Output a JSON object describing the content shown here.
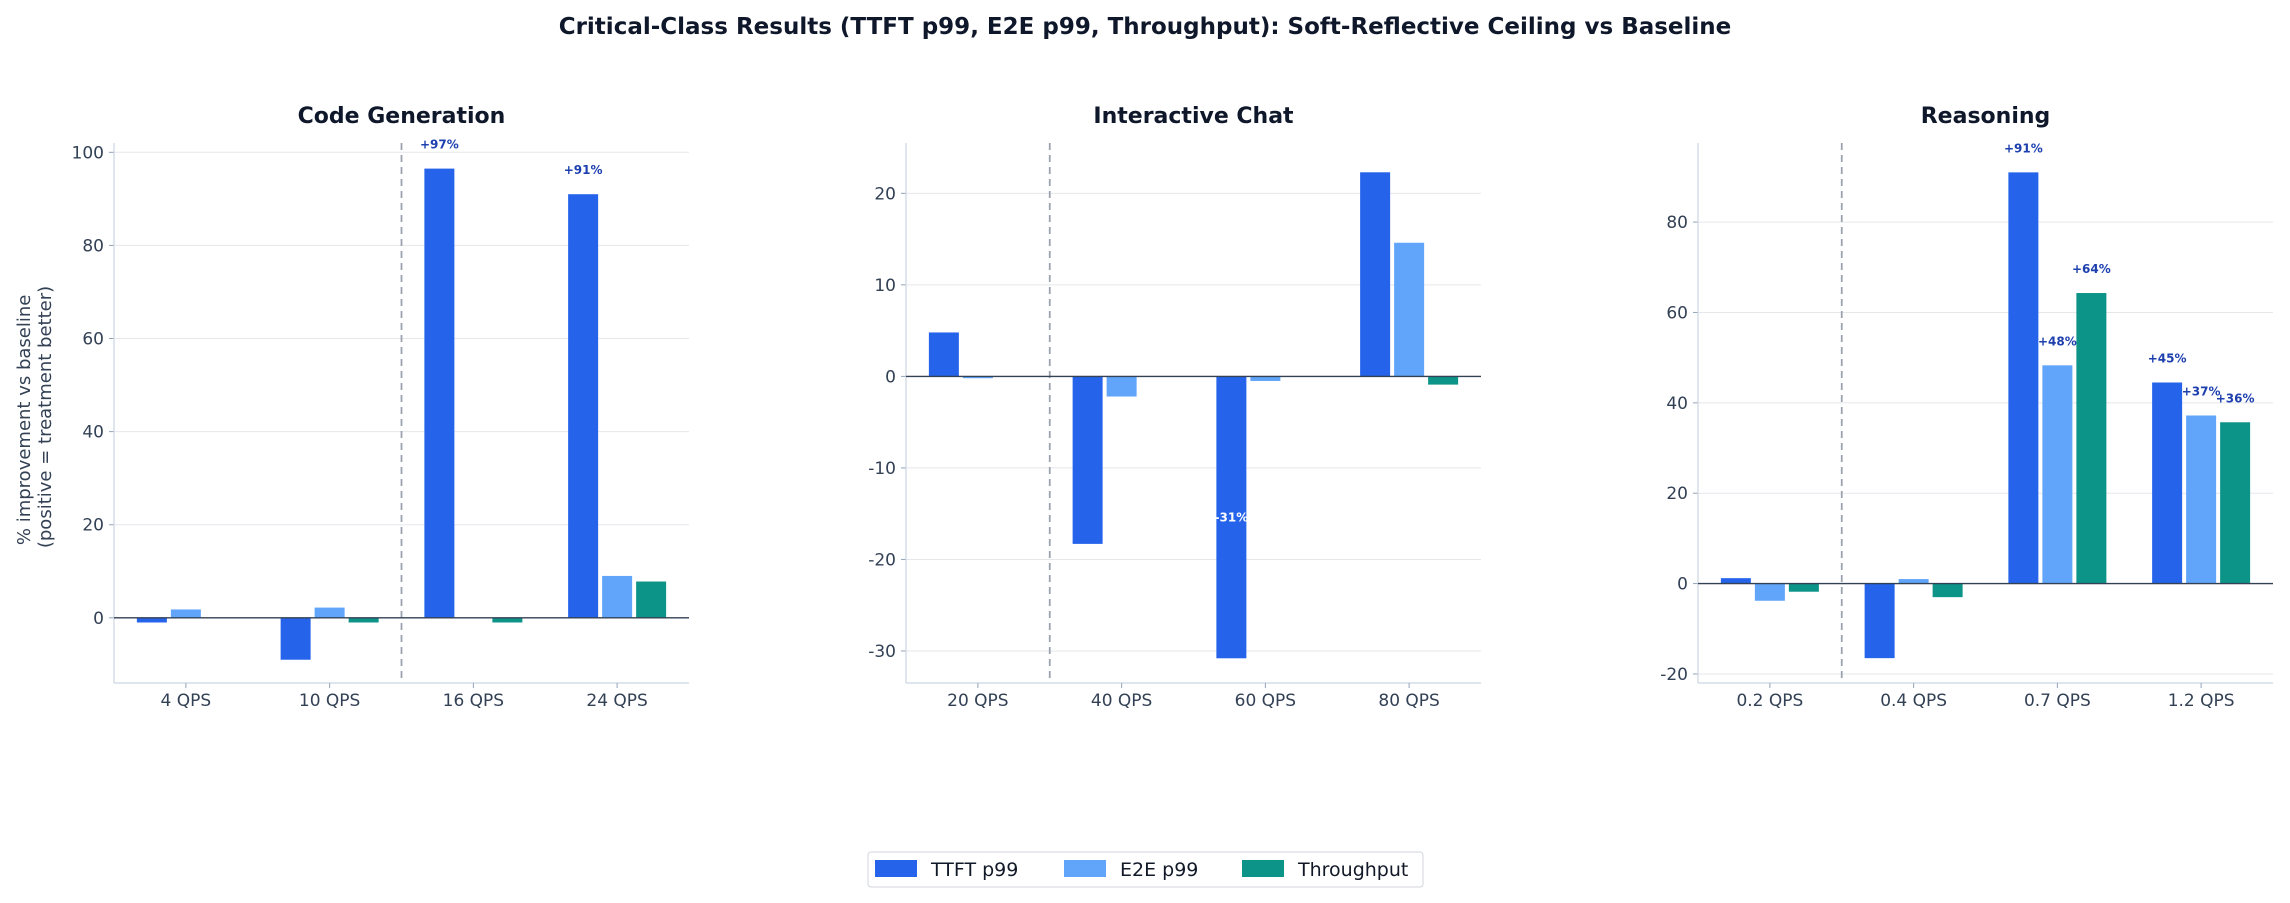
{
  "title": "Critical-Class Results (TTFT p99, E2E p99, Throughput): Soft-Reflective Ceiling vs Baseline",
  "ylabel_lines": [
    "% improvement vs baseline",
    "(positive = treatment better)"
  ],
  "legend": {
    "placement": "bottom-center",
    "entries": [
      {
        "name": "TTFT p99",
        "color": "#2563eb"
      },
      {
        "name": "E2E p99",
        "color": "#60a5fa"
      },
      {
        "name": "Throughput",
        "color": "#0d9488"
      }
    ]
  },
  "chart_data": [
    {
      "type": "bar",
      "title": "Code Generation",
      "categories": [
        "4 QPS",
        "10 QPS",
        "16 QPS",
        "24 QPS"
      ],
      "series": [
        {
          "name": "TTFT p99",
          "values": [
            -1,
            -9,
            96.5,
            91
          ]
        },
        {
          "name": "E2E p99",
          "values": [
            1.8,
            2.2,
            0,
            9
          ]
        },
        {
          "name": "Throughput",
          "values": [
            0,
            -1,
            -1,
            7.8
          ]
        }
      ],
      "ylim": [
        -14,
        102
      ],
      "yticks": [
        0,
        20,
        40,
        60,
        80,
        100
      ],
      "divider_after_index": 1,
      "annotations": [
        {
          "category": 2,
          "series": 0,
          "text": "+97%",
          "style": "above-top"
        },
        {
          "category": 3,
          "series": 0,
          "text": "+91%",
          "style": "above"
        }
      ],
      "grid": "y"
    },
    {
      "type": "bar",
      "title": "Interactive Chat",
      "categories": [
        "20 QPS",
        "40 QPS",
        "60 QPS",
        "80 QPS"
      ],
      "series": [
        {
          "name": "TTFT p99",
          "values": [
            4.8,
            -18.3,
            -30.8,
            22.3
          ]
        },
        {
          "name": "E2E p99",
          "values": [
            -0.2,
            -2.2,
            -0.5,
            14.6
          ]
        },
        {
          "name": "Throughput",
          "values": [
            0,
            0,
            0,
            -0.9
          ]
        }
      ],
      "ylim": [
        -33.5,
        25.5
      ],
      "yticks": [
        -30,
        -20,
        -10,
        0,
        10,
        20
      ],
      "divider_after_index": 0,
      "annotations": [
        {
          "category": 2,
          "series": 0,
          "text": "-31%",
          "style": "inside"
        }
      ],
      "grid": "y"
    },
    {
      "type": "bar",
      "title": "Reasoning",
      "categories": [
        "0.2 QPS",
        "0.4 QPS",
        "0.7 QPS",
        "1.2 QPS"
      ],
      "series": [
        {
          "name": "TTFT p99",
          "values": [
            1.2,
            -16.5,
            91,
            44.5
          ]
        },
        {
          "name": "E2E p99",
          "values": [
            -3.8,
            1,
            48.3,
            37.2
          ]
        },
        {
          "name": "Throughput",
          "values": [
            -1.8,
            -3,
            64.3,
            35.7
          ]
        }
      ],
      "ylim": [
        -22,
        97.5
      ],
      "yticks": [
        -20,
        0,
        20,
        40,
        60,
        80
      ],
      "divider_after_index": 0,
      "annotations": [
        {
          "category": 2,
          "series": 0,
          "text": "+91%",
          "style": "above-top"
        },
        {
          "category": 2,
          "series": 1,
          "text": "+48%",
          "style": "above"
        },
        {
          "category": 2,
          "series": 2,
          "text": "+64%",
          "style": "above"
        },
        {
          "category": 3,
          "series": 0,
          "text": "+45%",
          "style": "above"
        },
        {
          "category": 3,
          "series": 1,
          "text": "+37%",
          "style": "above"
        },
        {
          "category": 3,
          "series": 2,
          "text": "+36%",
          "style": "above"
        }
      ],
      "grid": "y"
    }
  ]
}
